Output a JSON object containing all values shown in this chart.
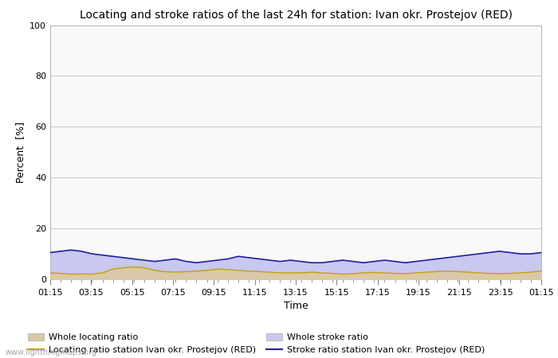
{
  "title": "Locating and stroke ratios of the last 24h for station: Ivan okr. Prostejov (RED)",
  "xlabel": "Time",
  "ylabel": "Percent  [%]",
  "ylim": [
    0,
    100
  ],
  "yticks": [
    0,
    20,
    40,
    60,
    80,
    100
  ],
  "x_labels": [
    "01:15",
    "03:15",
    "05:15",
    "07:15",
    "09:15",
    "11:15",
    "13:15",
    "15:15",
    "17:15",
    "19:15",
    "21:15",
    "23:15",
    "01:15"
  ],
  "background_color": "#ffffff",
  "plot_bg_color": "#f9f9f9",
  "grid_color": "#cccccc",
  "watermark": "www.lightningmaps.org",
  "whole_locating_fill_color": "#d9c9a8",
  "whole_stroke_fill_color": "#c8c8f0",
  "locating_line_color": "#c8a000",
  "stroke_line_color": "#2020a0",
  "whole_locating_ratio": [
    2.5,
    2.3,
    2.0,
    2.1,
    2.0,
    2.5,
    4.0,
    4.5,
    4.8,
    4.5,
    3.5,
    3.0,
    2.8,
    3.0,
    3.2,
    3.5,
    4.0,
    3.8,
    3.5,
    3.2,
    3.0,
    2.8,
    2.5,
    2.5,
    2.5,
    2.8,
    2.5,
    2.3,
    2.0,
    2.2,
    2.5,
    2.7,
    2.5,
    2.3,
    2.2,
    2.5,
    2.8,
    3.0,
    3.2,
    3.0,
    2.8,
    2.5,
    2.3,
    2.2,
    2.3,
    2.5,
    2.8,
    3.2
  ],
  "whole_stroke_ratio": [
    10.5,
    11.0,
    11.5,
    11.0,
    10.0,
    9.5,
    9.0,
    8.5,
    8.0,
    7.5,
    7.0,
    7.5,
    8.0,
    7.0,
    6.5,
    7.0,
    7.5,
    8.0,
    9.0,
    8.5,
    8.0,
    7.5,
    7.0,
    7.5,
    7.0,
    6.5,
    6.5,
    7.0,
    7.5,
    7.0,
    6.5,
    7.0,
    7.5,
    7.0,
    6.5,
    7.0,
    7.5,
    8.0,
    8.5,
    9.0,
    9.5,
    10.0,
    10.5,
    11.0,
    10.5,
    10.0,
    10.0,
    10.5
  ],
  "title_fontsize": 10,
  "axis_fontsize": 9,
  "tick_fontsize": 8,
  "legend_fontsize": 8
}
